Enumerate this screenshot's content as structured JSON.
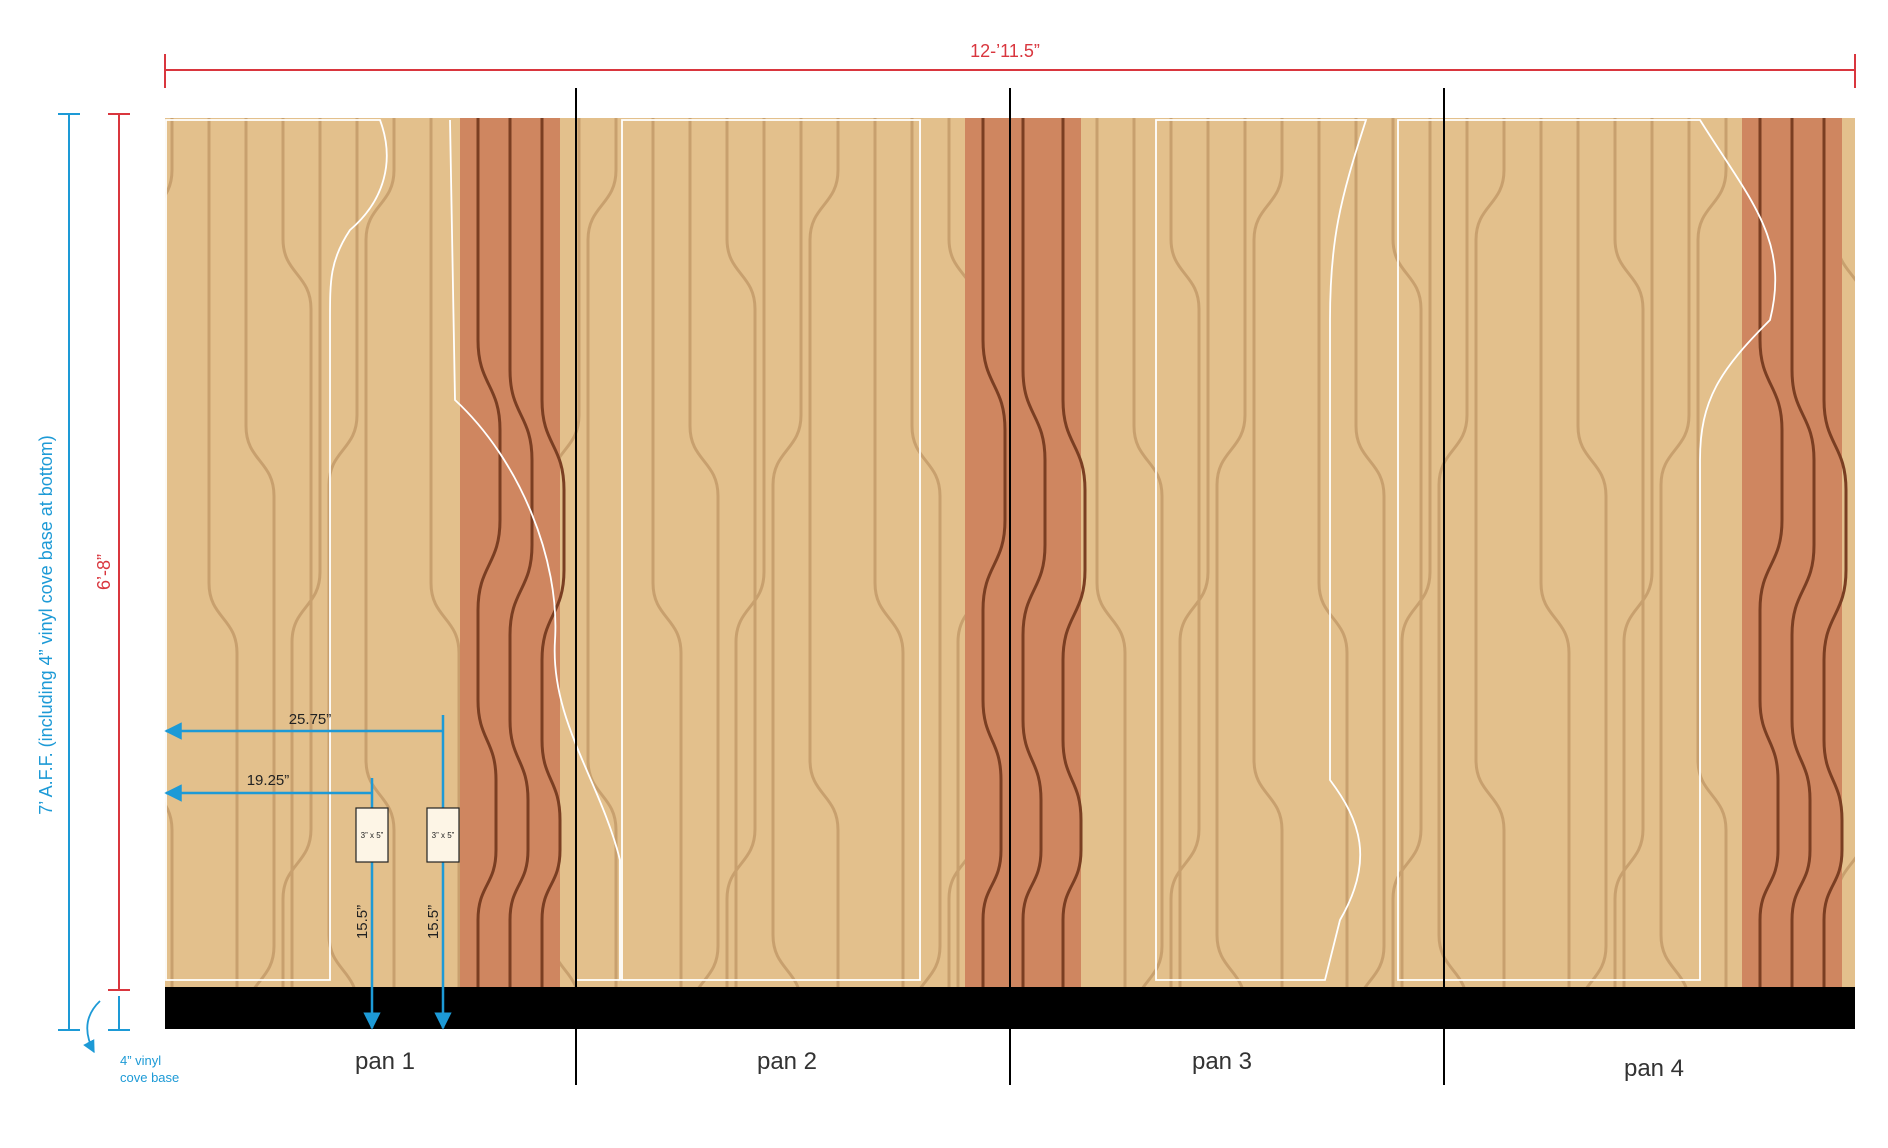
{
  "dimensions": {
    "overall_width": "12-’11.5”",
    "panel_height": "6’-8”",
    "total_height": "7’ A.F.F. (including 4” vinyl cove base at bottom)",
    "dist_a": "25.75”",
    "dist_b": "19.25”",
    "height_a": "15.5”",
    "height_b": "15.5”"
  },
  "outlets": [
    "3” x 5”",
    "3” x 5”"
  ],
  "cove_base_note": [
    "4” vinyl",
    "cove base"
  ],
  "panels": [
    "pan 1",
    "pan 2",
    "pan 3",
    "pan 4"
  ],
  "colors": {
    "wall": "#e3c08c",
    "stripe_line": "#c8a06e",
    "accent_band": "#cf8660",
    "accent_line": "#7a3e22",
    "base": "#000000",
    "dim_red": "#d9363e",
    "dim_blue": "#1d9ad6",
    "outline": "#ffffff"
  }
}
